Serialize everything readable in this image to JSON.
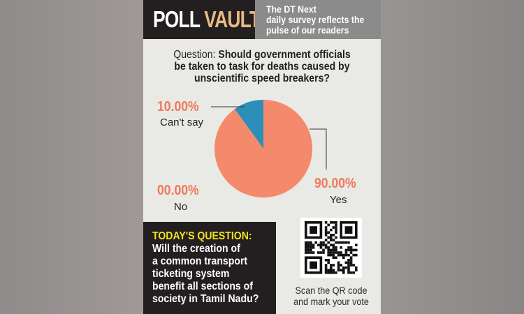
{
  "header": {
    "logo_part1": "POLL",
    "logo_part2": "VAULT",
    "tagline_line1": "The DT Next",
    "tagline_line2": "daily survey reflects the",
    "tagline_line3": "pulse of our readers"
  },
  "question": {
    "prefix": "Question:",
    "line1": "Should government officials",
    "line2": "be taken to task for deaths caused by",
    "line3": "unscientific speed breakers?"
  },
  "chart_data": {
    "type": "pie",
    "slices": [
      {
        "label": "Yes",
        "value": 90.0,
        "display": "90.00%",
        "color": "#f4896b"
      },
      {
        "label": "Can't say",
        "value": 10.0,
        "display": "10.00%",
        "color": "#2b8fb9"
      },
      {
        "label": "No",
        "value": 0.0,
        "display": "00.00%",
        "color": "#f4896b"
      }
    ]
  },
  "todays_question": {
    "heading": "TODAY'S QUESTION:",
    "lines": [
      "Will the creation of",
      "a common transport",
      "ticketing system",
      "benefit all sections of",
      "society in Tamil Nadu?"
    ]
  },
  "qr": {
    "caption_line1": "Scan the QR code",
    "caption_line2": "and mark your vote"
  },
  "colors": {
    "dark": "#231f20",
    "accent_gold": "#e8b982",
    "accent_yellow": "#f2e21a",
    "percent": "#ee7a5c"
  }
}
